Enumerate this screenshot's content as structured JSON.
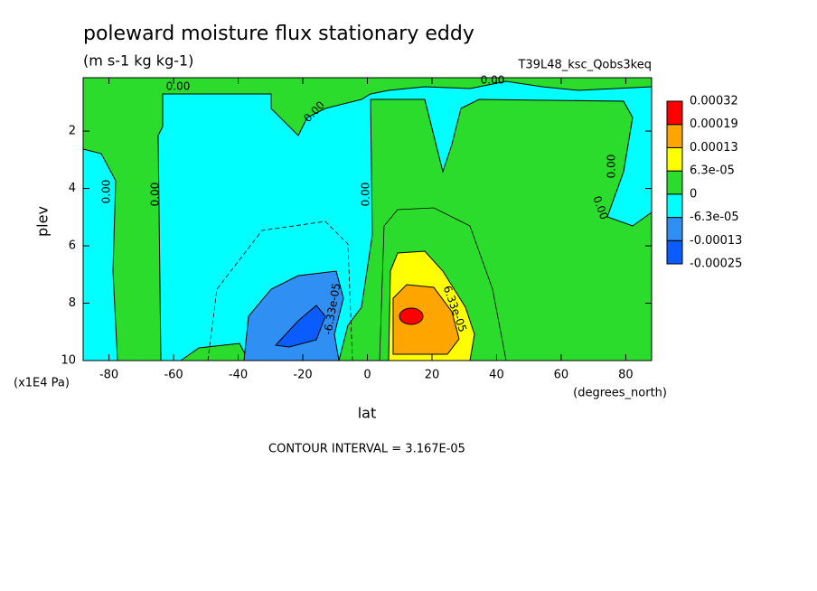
{
  "chart_data": {
    "type": "contour",
    "title": "poleward moisture flux stationary eddy",
    "subtitle": "(m s-1 kg kg-1)",
    "dataset": "T39L48_ksc_Qobs3keq",
    "xlabel": "lat",
    "xunits": "(degrees_north)",
    "ylabel": "plev",
    "yunits": "(x1E4 Pa)",
    "xlim": [
      -88,
      88
    ],
    "xticks": [
      -80,
      -60,
      -40,
      -20,
      0,
      20,
      40,
      60,
      80
    ],
    "ylim": [
      10,
      0.14
    ],
    "yticks": [
      2,
      4,
      6,
      8,
      10
    ],
    "colorbar": {
      "levels": [
        -0.00025,
        -0.00013,
        {
          "value": -6.3e-05,
          "label": "-6.3e-05"
        },
        0,
        {
          "value": 6.3e-05,
          "label": "6.3e-05"
        },
        0.00013,
        0.00019,
        0.00032
      ],
      "colors": [
        "#0a5cff",
        "#2f8ff2",
        "#00ffff",
        "#2cdc2c",
        "#ffff00",
        "#ffa500",
        "#ff0000"
      ]
    },
    "contour_labels": [
      "0.00",
      "0.00",
      "0.00",
      "0.00",
      "0.00",
      "0.00",
      "0.00",
      "0.00",
      "-6.33e-05",
      "6.33e-05"
    ],
    "note": "CONTOUR INTERVAL = 3.167E-05"
  }
}
